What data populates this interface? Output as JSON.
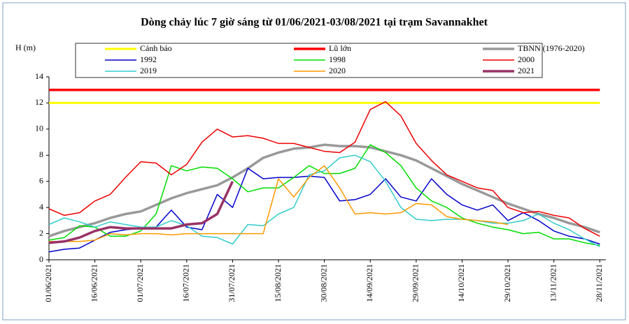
{
  "chart_data": {
    "type": "line",
    "title": "Dòng chảy lúc 7 giờ sáng từ 01/06/2021-03/08/2021 tại trạm Savannakhet",
    "y_label": "H (m)",
    "x": [
      0,
      5,
      10,
      15,
      20,
      25,
      30,
      35,
      40,
      45,
      50,
      55,
      60,
      65,
      70,
      75,
      80,
      85,
      90,
      95,
      100,
      105,
      110,
      115,
      120,
      125,
      130,
      135,
      140,
      145,
      150,
      155,
      160,
      165,
      170,
      175,
      180
    ],
    "xlim": [
      0,
      182
    ],
    "xticks": [
      {
        "value": 0,
        "label": "01/06/2021"
      },
      {
        "value": 15,
        "label": "16/06/2021"
      },
      {
        "value": 30,
        "label": "01/07/2021"
      },
      {
        "value": 45,
        "label": "16/07/2021"
      },
      {
        "value": 60,
        "label": "31/07/2021"
      },
      {
        "value": 75,
        "label": "15/08/2021"
      },
      {
        "value": 90,
        "label": "30/08/2021"
      },
      {
        "value": 105,
        "label": "14/09/2021"
      },
      {
        "value": 120,
        "label": "29/09/2021"
      },
      {
        "value": 135,
        "label": "14/10/2021"
      },
      {
        "value": 150,
        "label": "29/10/2021"
      },
      {
        "value": 165,
        "label": "13/11/2021"
      },
      {
        "value": 180,
        "label": "28/11/2021"
      }
    ],
    "ylim": [
      0,
      14
    ],
    "yticks": [
      0,
      2,
      4,
      6,
      8,
      10,
      12,
      14
    ],
    "grid": false,
    "series": [
      {
        "name": "Cảnh báo",
        "color": "#ffff00",
        "width": 3,
        "values": [
          12,
          12,
          12,
          12,
          12,
          12,
          12,
          12,
          12,
          12,
          12,
          12,
          12,
          12,
          12,
          12,
          12,
          12,
          12,
          12,
          12,
          12,
          12,
          12,
          12,
          12,
          12,
          12,
          12,
          12,
          12,
          12,
          12,
          12,
          12,
          12,
          12
        ]
      },
      {
        "name": "Lũ lớn",
        "color": "#ff0000",
        "width": 3.5,
        "values": [
          13,
          13,
          13,
          13,
          13,
          13,
          13,
          13,
          13,
          13,
          13,
          13,
          13,
          13,
          13,
          13,
          13,
          13,
          13,
          13,
          13,
          13,
          13,
          13,
          13,
          13,
          13,
          13,
          13,
          13,
          13,
          13,
          13,
          13,
          13,
          13,
          13
        ]
      },
      {
        "name": "TBNN (1976-2020)",
        "color": "#999999",
        "width": 3.5,
        "values": [
          1.8,
          2.2,
          2.5,
          2.8,
          3.2,
          3.5,
          3.7,
          4.2,
          4.7,
          5.1,
          5.4,
          5.7,
          6.3,
          7.0,
          7.8,
          8.2,
          8.5,
          8.6,
          8.8,
          8.7,
          8.7,
          8.6,
          8.3,
          8.0,
          7.6,
          7.0,
          6.4,
          5.8,
          5.3,
          4.8,
          4.3,
          3.9,
          3.5,
          3.2,
          2.8,
          2.5,
          2.1
        ]
      },
      {
        "name": "1992",
        "color": "#0000cc",
        "width": 1.5,
        "values": [
          0.6,
          0.8,
          0.9,
          1.5,
          2.1,
          2.3,
          2.4,
          2.5,
          3.8,
          2.5,
          2.3,
          5.0,
          4.0,
          7.0,
          6.2,
          6.3,
          6.3,
          6.4,
          6.3,
          4.5,
          4.6,
          5.0,
          6.2,
          4.8,
          4.5,
          6.2,
          5.0,
          4.2,
          3.8,
          4.2,
          3.0,
          3.6,
          3.0,
          2.2,
          1.8,
          1.6,
          1.2
        ]
      },
      {
        "name": "1998",
        "color": "#00dd00",
        "width": 1.5,
        "values": [
          1.5,
          1.7,
          2.6,
          2.5,
          1.8,
          1.8,
          2.2,
          3.5,
          7.2,
          6.8,
          7.1,
          7.0,
          6.2,
          5.2,
          5.5,
          5.5,
          6.3,
          7.2,
          6.6,
          6.6,
          7.0,
          8.8,
          8.2,
          7.2,
          5.5,
          4.5,
          4.0,
          3.2,
          2.8,
          2.5,
          2.3,
          2.0,
          2.1,
          1.6,
          1.6,
          1.3,
          1.1
        ]
      },
      {
        "name": "2000",
        "color": "#ee0000",
        "width": 1.5,
        "values": [
          3.9,
          3.4,
          3.6,
          4.5,
          5.0,
          6.3,
          7.5,
          7.4,
          6.5,
          7.3,
          9.0,
          10.0,
          9.4,
          9.5,
          9.3,
          8.9,
          8.9,
          8.6,
          8.3,
          8.2,
          9.0,
          11.5,
          12.1,
          11.0,
          8.9,
          7.6,
          6.5,
          6.0,
          5.5,
          5.3,
          4.0,
          3.6,
          3.7,
          3.4,
          3.2,
          2.4,
          1.8
        ]
      },
      {
        "name": "2019",
        "color": "#33cccc",
        "width": 1.5,
        "values": [
          2.7,
          3.2,
          2.9,
          2.5,
          2.9,
          2.7,
          2.5,
          2.5,
          3.0,
          2.6,
          1.8,
          1.7,
          1.2,
          2.7,
          2.6,
          3.5,
          4.0,
          6.5,
          6.8,
          7.8,
          8.0,
          7.5,
          6.0,
          4.0,
          3.1,
          3.0,
          3.1,
          3.1,
          3.0,
          2.8,
          2.8,
          3.0,
          3.5,
          2.8,
          2.3,
          1.6,
          1.0
        ]
      },
      {
        "name": "2020",
        "color": "#ff9900",
        "width": 1.5,
        "values": [
          1.4,
          1.4,
          1.4,
          1.5,
          2.0,
          1.9,
          2.0,
          2.0,
          1.9,
          2.0,
          2.0,
          2.0,
          2.0,
          2.0,
          2.0,
          6.2,
          4.8,
          6.3,
          7.2,
          5.5,
          3.5,
          3.6,
          3.5,
          3.6,
          4.3,
          4.2,
          3.3,
          3.1,
          3.0,
          2.9,
          2.7,
          null,
          null,
          null,
          null,
          null,
          null
        ]
      },
      {
        "name": "2021",
        "color": "#993366",
        "width": 3.5,
        "values": [
          1.3,
          1.4,
          1.7,
          2.2,
          2.5,
          2.4,
          2.4,
          2.4,
          2.4,
          2.7,
          2.8,
          3.5,
          6.0,
          null,
          null,
          null,
          null,
          null,
          null,
          null,
          null,
          null,
          null,
          null,
          null,
          null,
          null,
          null,
          null,
          null,
          null,
          null,
          null,
          null,
          null,
          null,
          null
        ]
      }
    ]
  }
}
